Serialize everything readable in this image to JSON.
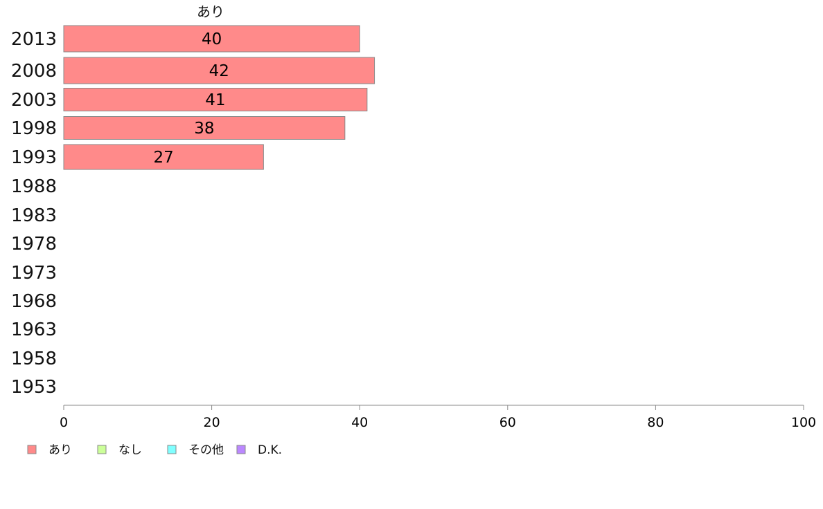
{
  "chart_data": {
    "type": "bar",
    "orientation": "horizontal",
    "stacked": true,
    "column_title": "あり",
    "categories": [
      "2013",
      "2008",
      "2003",
      "1998",
      "1993",
      "1988",
      "1983",
      "1978",
      "1973",
      "1968",
      "1963",
      "1958",
      "1953"
    ],
    "series": [
      {
        "name": "あり",
        "color": "#ff8a8a",
        "values": [
          40,
          42,
          41,
          38,
          27,
          null,
          null,
          null,
          null,
          null,
          null,
          null,
          null
        ]
      },
      {
        "name": "なし",
        "color": "#ccff99",
        "values": [
          null,
          null,
          null,
          null,
          null,
          null,
          null,
          null,
          null,
          null,
          null,
          null,
          null
        ]
      },
      {
        "name": "その他",
        "color": "#80ffff",
        "values": [
          null,
          null,
          null,
          null,
          null,
          null,
          null,
          null,
          null,
          null,
          null,
          null,
          null
        ]
      },
      {
        "name": "D.K.",
        "color": "#bb88ff",
        "values": [
          null,
          null,
          null,
          null,
          null,
          null,
          null,
          null,
          null,
          null,
          null,
          null,
          null
        ]
      }
    ],
    "xlim": [
      0,
      100
    ],
    "xticks": [
      0,
      20,
      40,
      60,
      80,
      100
    ],
    "grid": false,
    "legend_position": "bottom-left"
  }
}
